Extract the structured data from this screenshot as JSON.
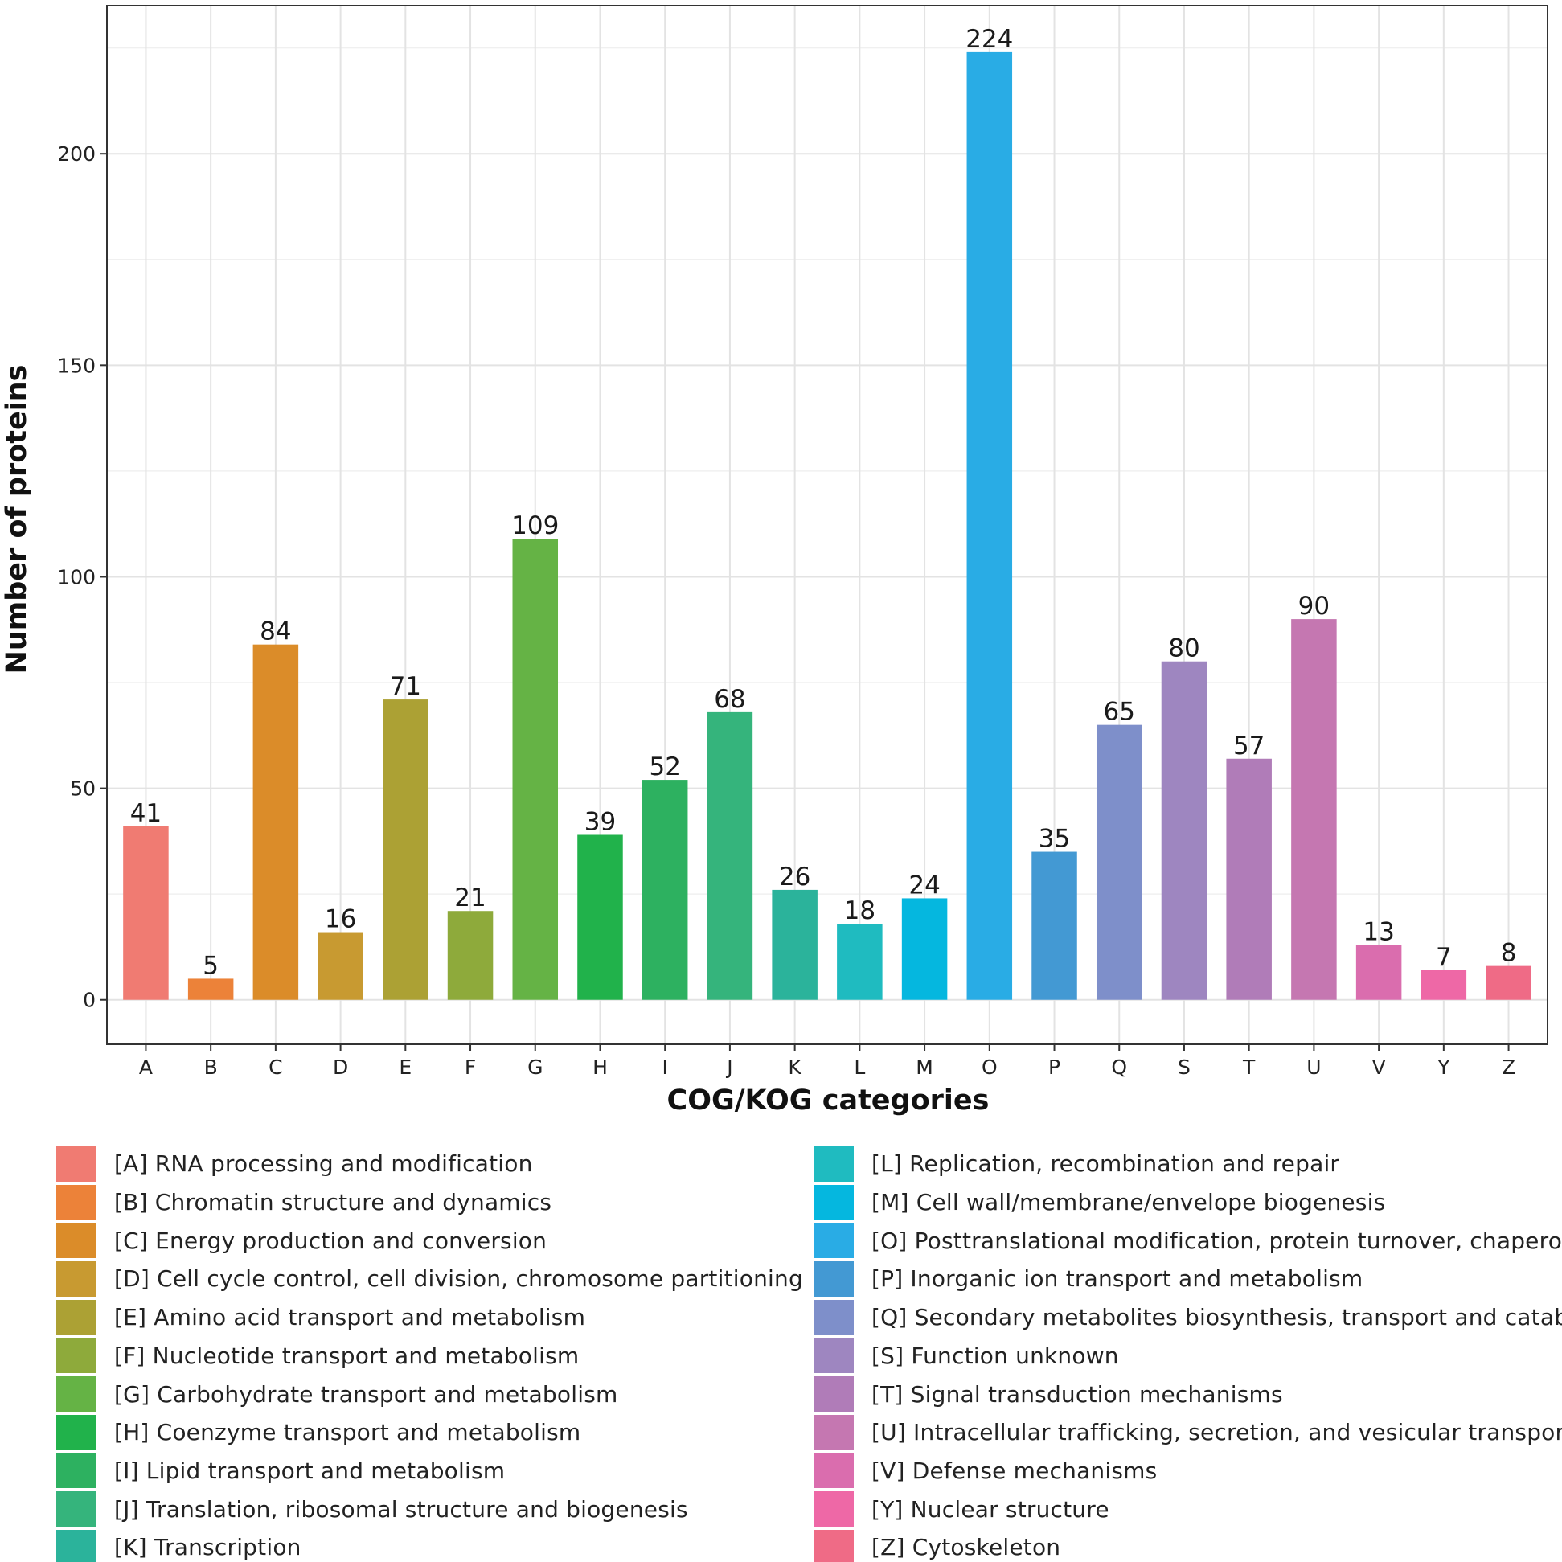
{
  "chart_data": {
    "type": "bar",
    "title": "",
    "xlabel": "COG/KOG categories",
    "ylabel": "Number of proteins",
    "ylim": [
      -10.5,
      235
    ],
    "yticks": [
      0,
      50,
      100,
      150,
      200
    ],
    "grid": true,
    "categories": [
      "A",
      "B",
      "C",
      "D",
      "E",
      "F",
      "G",
      "H",
      "I",
      "J",
      "K",
      "L",
      "M",
      "O",
      "P",
      "Q",
      "S",
      "T",
      "U",
      "V",
      "Y",
      "Z"
    ],
    "values": [
      41,
      5,
      84,
      16,
      71,
      21,
      109,
      39,
      52,
      68,
      26,
      18,
      24,
      224,
      35,
      65,
      80,
      57,
      90,
      13,
      7,
      8
    ],
    "colors": [
      "#F07B72",
      "#EC8239",
      "#DB8C29",
      "#C89A31",
      "#ACA134",
      "#8EAA3B",
      "#65B345",
      "#21B24B",
      "#2DB160",
      "#35B47C",
      "#2BB39B",
      "#1FBBC0",
      "#05B7DF",
      "#29ACE5",
      "#4399D3",
      "#7E8FCA",
      "#9E86C0",
      "#B07CB8",
      "#C577B1",
      "#DA6DAE",
      "#EE68A6",
      "#EF6B86"
    ],
    "legend": [
      {
        "code": "A",
        "label": "[A] RNA processing and modification"
      },
      {
        "code": "B",
        "label": "[B] Chromatin structure and dynamics"
      },
      {
        "code": "C",
        "label": "[C] Energy production and conversion"
      },
      {
        "code": "D",
        "label": "[D] Cell cycle control, cell division, chromosome partitioning"
      },
      {
        "code": "E",
        "label": "[E] Amino acid transport and metabolism"
      },
      {
        "code": "F",
        "label": "[F] Nucleotide transport and metabolism"
      },
      {
        "code": "G",
        "label": "[G] Carbohydrate transport and metabolism"
      },
      {
        "code": "H",
        "label": "[H] Coenzyme transport and metabolism"
      },
      {
        "code": "I",
        "label": "[I] Lipid transport and metabolism"
      },
      {
        "code": "J",
        "label": "[J] Translation, ribosomal structure and biogenesis"
      },
      {
        "code": "K",
        "label": "[K] Transcription"
      },
      {
        "code": "L",
        "label": "[L] Replication, recombination and repair"
      },
      {
        "code": "M",
        "label": "[M] Cell wall/membrane/envelope biogenesis"
      },
      {
        "code": "O",
        "label": "[O] Posttranslational modification, protein turnover, chaperones"
      },
      {
        "code": "P",
        "label": "[P] Inorganic ion transport and metabolism"
      },
      {
        "code": "Q",
        "label": "[Q] Secondary metabolites biosynthesis, transport and catabolism"
      },
      {
        "code": "S",
        "label": "[S] Function unknown"
      },
      {
        "code": "T",
        "label": "[T] Signal transduction mechanisms"
      },
      {
        "code": "U",
        "label": "[U] Intracellular trafficking, secretion, and vesicular transport"
      },
      {
        "code": "V",
        "label": "[V] Defense mechanisms"
      },
      {
        "code": "Y",
        "label": "[Y] Nuclear structure"
      },
      {
        "code": "Z",
        "label": "[Z] Cytoskeleton"
      }
    ]
  }
}
